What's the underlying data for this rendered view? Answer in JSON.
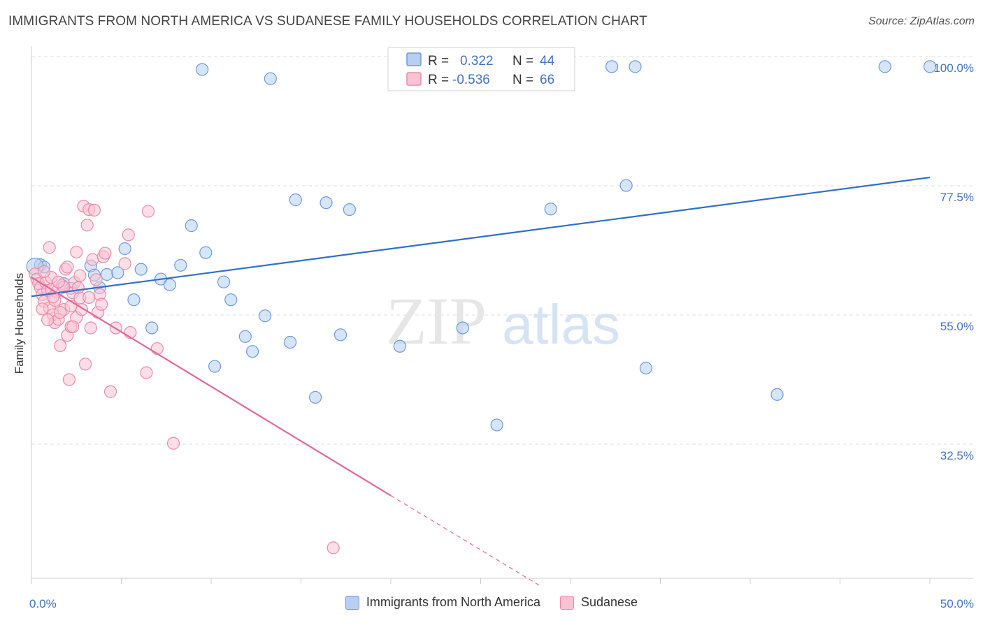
{
  "title": "IMMIGRANTS FROM NORTH AMERICA VS SUDANESE FAMILY HOUSEHOLDS CORRELATION CHART",
  "source": "Source: ZipAtlas.com",
  "watermark": {
    "zip": "ZIP",
    "atlas": "atlas"
  },
  "legend_top": [
    {
      "r_label": "R =",
      "r_value": "0.322",
      "n_label": "N =",
      "n_value": "44"
    },
    {
      "r_label": "R =",
      "r_value": "-0.536",
      "n_label": "N =",
      "n_value": "66"
    }
  ],
  "colors": {
    "blue_fill": "#b7cff2",
    "blue_stroke": "#6b9be0",
    "blue_line": "#2e6fcf",
    "pink_fill": "#f9c3d3",
    "pink_stroke": "#ec8aa8",
    "pink_line": "#e0689a",
    "grid": "#dddddd",
    "tick_label": "#4472c4"
  },
  "chart_data": {
    "type": "scatter",
    "title": "IMMIGRANTS FROM NORTH AMERICA VS SUDANESE FAMILY HOUSEHOLDS CORRELATION CHART",
    "xlabel": "",
    "ylabel": "Family Households",
    "xlim": [
      0,
      50
    ],
    "ylim": [
      10,
      103
    ],
    "x_tick_labels": [
      "0.0%",
      "50.0%"
    ],
    "y_ticks": [
      32.5,
      55.0,
      77.5,
      100.0
    ],
    "y_tick_labels": [
      "32.5%",
      "55.0%",
      "77.5%",
      "100.0%"
    ],
    "grid": true,
    "legend_position": "top-center",
    "series": [
      {
        "name": "Immigrants from North America",
        "r": 0.322,
        "n": 44,
        "trend": {
          "x": [
            0,
            50
          ],
          "y": [
            60.2,
            80.9
          ]
        },
        "points": [
          [
            0.5,
            65.7
          ],
          [
            0.7,
            65.3
          ],
          [
            1.8,
            62.4
          ],
          [
            2.2,
            61.6
          ],
          [
            3.3,
            65.5
          ],
          [
            3.5,
            63.9
          ],
          [
            3.8,
            61.7
          ],
          [
            4.2,
            64.0
          ],
          [
            4.8,
            64.3
          ],
          [
            5.2,
            68.5
          ],
          [
            5.7,
            59.6
          ],
          [
            6.1,
            64.9
          ],
          [
            6.7,
            54.7
          ],
          [
            7.2,
            63.2
          ],
          [
            7.7,
            62.2
          ],
          [
            8.3,
            65.6
          ],
          [
            8.9,
            72.5
          ],
          [
            9.5,
            99.7
          ],
          [
            9.7,
            67.8
          ],
          [
            10.2,
            48.0
          ],
          [
            10.7,
            62.7
          ],
          [
            11.1,
            59.6
          ],
          [
            11.9,
            53.2
          ],
          [
            12.3,
            50.6
          ],
          [
            13.0,
            56.8
          ],
          [
            13.3,
            98.1
          ],
          [
            14.4,
            52.2
          ],
          [
            14.7,
            77.0
          ],
          [
            15.8,
            42.6
          ],
          [
            16.4,
            76.5
          ],
          [
            17.2,
            53.5
          ],
          [
            17.7,
            75.3
          ],
          [
            20.5,
            51.5
          ],
          [
            24.0,
            54.7
          ],
          [
            25.9,
            37.8
          ],
          [
            28.9,
            75.4
          ],
          [
            32.3,
            100.2
          ],
          [
            33.1,
            79.5
          ],
          [
            33.6,
            100.2
          ],
          [
            34.2,
            47.7
          ],
          [
            41.5,
            43.1
          ],
          [
            47.5,
            100.2
          ],
          [
            50.0,
            100.2
          ],
          [
            0.2,
            65.4
          ]
        ]
      },
      {
        "name": "Sudanese",
        "r": -0.536,
        "n": 66,
        "trend": {
          "x": [
            0,
            20
          ],
          "y": [
            63.5,
            25.5
          ]
        },
        "trend_dashed": {
          "x": [
            20,
            28.3
          ],
          "y": [
            25.5,
            9.8
          ]
        },
        "points": [
          [
            0.2,
            64.1
          ],
          [
            0.3,
            63.2
          ],
          [
            0.4,
            62.4
          ],
          [
            0.5,
            61.7
          ],
          [
            0.6,
            60.5
          ],
          [
            0.7,
            59.3
          ],
          [
            0.8,
            62.6
          ],
          [
            0.9,
            61.2
          ],
          [
            1.0,
            58.2
          ],
          [
            1.1,
            63.5
          ],
          [
            1.2,
            57.0
          ],
          [
            1.3,
            55.6
          ],
          [
            1.4,
            61.0
          ],
          [
            1.5,
            56.2
          ],
          [
            1.6,
            51.6
          ],
          [
            1.7,
            62.1
          ],
          [
            1.8,
            57.9
          ],
          [
            1.9,
            64.9
          ],
          [
            2.0,
            53.4
          ],
          [
            2.1,
            45.7
          ],
          [
            2.2,
            54.9
          ],
          [
            2.3,
            60.8
          ],
          [
            2.4,
            62.6
          ],
          [
            2.5,
            56.5
          ],
          [
            2.6,
            61.7
          ],
          [
            2.7,
            59.9
          ],
          [
            2.8,
            57.9
          ],
          [
            2.9,
            75.9
          ],
          [
            3.0,
            48.4
          ],
          [
            3.1,
            72.6
          ],
          [
            3.2,
            75.3
          ],
          [
            3.3,
            54.7
          ],
          [
            3.4,
            66.6
          ],
          [
            3.5,
            75.2
          ],
          [
            3.6,
            63.1
          ],
          [
            3.7,
            57.4
          ],
          [
            3.8,
            60.5
          ],
          [
            3.9,
            58.8
          ],
          [
            4.0,
            67.1
          ],
          [
            4.1,
            67.7
          ],
          [
            4.4,
            43.6
          ],
          [
            4.7,
            54.7
          ],
          [
            5.2,
            65.9
          ],
          [
            5.4,
            70.9
          ],
          [
            5.5,
            53.9
          ],
          [
            6.4,
            46.9
          ],
          [
            6.5,
            75.0
          ],
          [
            7.0,
            51.1
          ],
          [
            7.9,
            34.6
          ],
          [
            16.8,
            16.4
          ],
          [
            1.0,
            68.7
          ],
          [
            1.1,
            61.4
          ],
          [
            1.3,
            59.5
          ],
          [
            1.8,
            61.8
          ],
          [
            2.0,
            65.3
          ],
          [
            2.5,
            67.9
          ],
          [
            2.2,
            58.5
          ],
          [
            0.9,
            56.1
          ],
          [
            0.7,
            64.5
          ],
          [
            1.5,
            62.7
          ],
          [
            1.2,
            60.1
          ],
          [
            2.7,
            63.8
          ],
          [
            0.6,
            58.0
          ],
          [
            1.6,
            57.4
          ],
          [
            2.3,
            54.9
          ],
          [
            3.2,
            60.0
          ]
        ]
      }
    ]
  }
}
